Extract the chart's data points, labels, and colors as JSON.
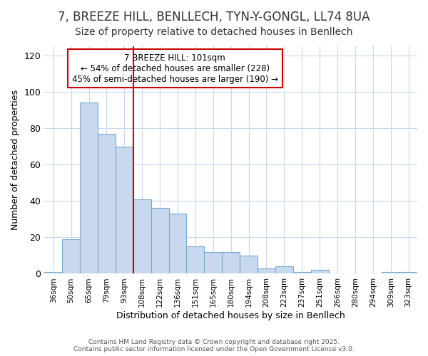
{
  "title": "7, BREEZE HILL, BENLLECH, TYN-Y-GONGL, LL74 8UA",
  "subtitle": "Size of property relative to detached houses in Benllech",
  "xlabel": "Distribution of detached houses by size in Benllech",
  "ylabel": "Number of detached properties",
  "categories": [
    "36sqm",
    "50sqm",
    "65sqm",
    "79sqm",
    "93sqm",
    "108sqm",
    "122sqm",
    "136sqm",
    "151sqm",
    "165sqm",
    "180sqm",
    "194sqm",
    "208sqm",
    "223sqm",
    "237sqm",
    "251sqm",
    "266sqm",
    "280sqm",
    "294sqm",
    "309sqm",
    "323sqm"
  ],
  "values": [
    1,
    19,
    94,
    77,
    70,
    41,
    36,
    33,
    15,
    12,
    12,
    10,
    3,
    4,
    1,
    2,
    0,
    0,
    0,
    1,
    1
  ],
  "bar_color": "#c8d8ee",
  "bar_edge_color": "#7aaad0",
  "vline_x": 5,
  "vline_color": "#cc0000",
  "annotation_text": "7 BREEZE HILL: 101sqm\n← 54% of detached houses are smaller (228)\n45% of semi-detached houses are larger (190) →",
  "annotation_box_color": "#ffffff",
  "annotation_box_edge": "#cc0000",
  "footer_text": "Contains HM Land Registry data © Crown copyright and database right 2025.\nContains public sector information licensed under the Open Government Licence v3.0.",
  "ylim": [
    0,
    125
  ],
  "title_fontsize": 12,
  "subtitle_fontsize": 10,
  "bg_color": "#ffffff",
  "plot_bg_color": "#ffffff",
  "grid_color": "#c8d8ee"
}
